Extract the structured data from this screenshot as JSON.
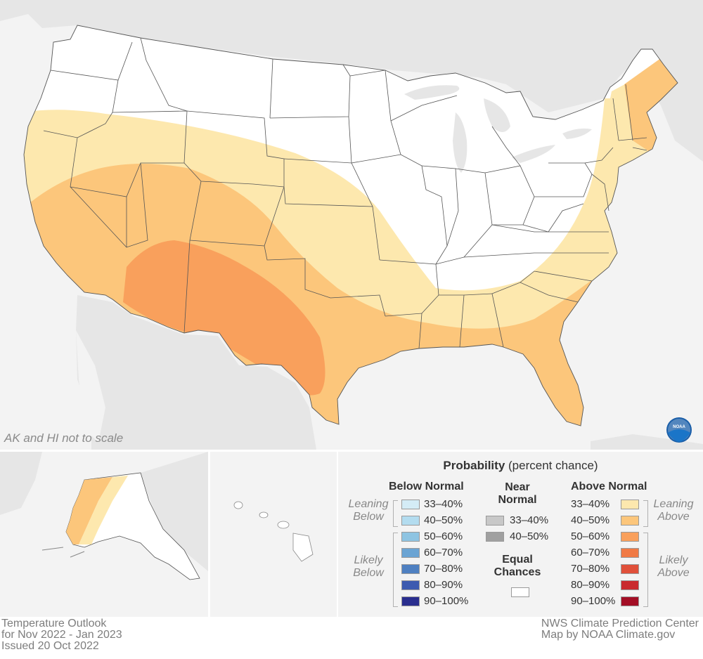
{
  "note": "AK and HI not to scale",
  "footer": {
    "left": [
      "Temperature Outlook",
      "for Nov 2022 - Jan 2023",
      "Issued 20 Oct 2022"
    ],
    "right": [
      "NWS Climate Prediction Center",
      "Map by NOAA Climate.gov"
    ]
  },
  "logo_text": "NOAA",
  "legend": {
    "title_bold": "Probability",
    "title_rest": " (percent chance)",
    "below": {
      "heading": "Below Normal",
      "leaning": [
        "Leaning",
        "Below"
      ],
      "likely": [
        "Likely",
        "Below"
      ],
      "items": [
        {
          "label": "33–40%",
          "color": "#d4ecf6"
        },
        {
          "label": "40–50%",
          "color": "#b3dcef"
        },
        {
          "label": "50–60%",
          "color": "#8ec4e2"
        },
        {
          "label": "60–70%",
          "color": "#6ba4d3"
        },
        {
          "label": "70–80%",
          "color": "#4f80c1"
        },
        {
          "label": "80–90%",
          "color": "#3d5bb0"
        },
        {
          "label": "90–100%",
          "color": "#2a2e8e"
        }
      ]
    },
    "near": {
      "heading": [
        "Near",
        "Normal"
      ],
      "items": [
        {
          "label": "33–40%",
          "color": "#c8c8c8"
        },
        {
          "label": "40–50%",
          "color": "#a0a0a0"
        }
      ],
      "equal": [
        "Equal",
        "Chances"
      ]
    },
    "above": {
      "heading": "Above Normal",
      "leaning": [
        "Leaning",
        "Above"
      ],
      "likely": [
        "Likely",
        "Above"
      ],
      "items": [
        {
          "label": "33–40%",
          "color": "#fde8ae"
        },
        {
          "label": "40–50%",
          "color": "#fcc67b"
        },
        {
          "label": "50–60%",
          "color": "#f9a05c"
        },
        {
          "label": "60–70%",
          "color": "#f07a45"
        },
        {
          "label": "70–80%",
          "color": "#e0503a"
        },
        {
          "label": "80–90%",
          "color": "#c92a2e"
        },
        {
          "label": "90–100%",
          "color": "#a30e25"
        }
      ]
    }
  },
  "colors": {
    "background_land": "#e6e6e6",
    "ocean": "#f3f3f3",
    "conus_base": "#ffffff",
    "above_33_40": "#fde8ae",
    "above_40_50": "#fcc67b",
    "above_50_60": "#f9a05c",
    "border": "#555555"
  }
}
